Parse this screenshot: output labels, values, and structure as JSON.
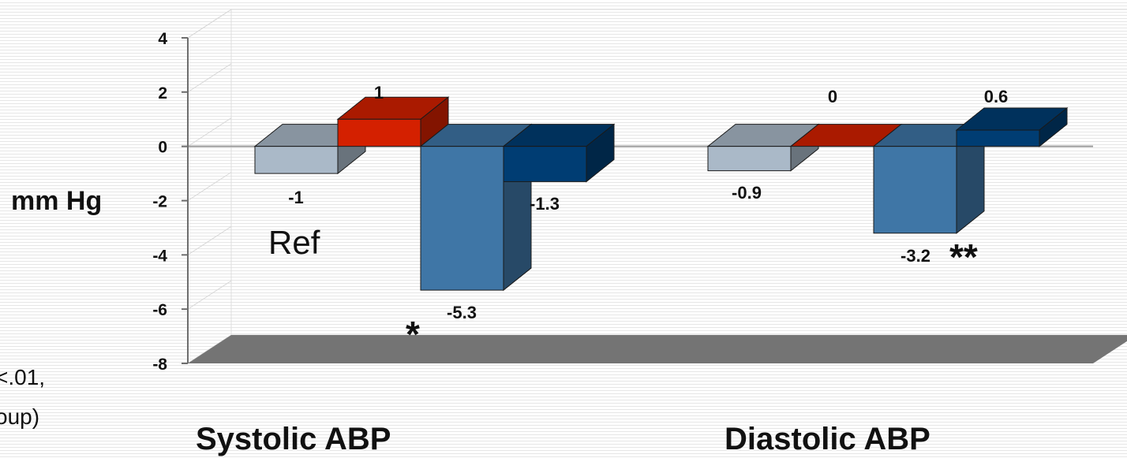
{
  "chart_data": {
    "type": "bar",
    "categories": [
      "Systolic ABP",
      "Diastolic ABP"
    ],
    "series": [
      {
        "values": [
          -1,
          -0.9
        ],
        "color": "#aab9c8"
      },
      {
        "values": [
          1,
          0
        ],
        "color": "#d42000"
      },
      {
        "values": [
          -5.3,
          -3.2
        ],
        "color": "#3f76a6"
      },
      {
        "values": [
          -1.3,
          0.6
        ],
        "color": "#003d73"
      }
    ],
    "data_labels": [
      [
        "-1",
        "-0.9"
      ],
      [
        "1",
        "0"
      ],
      [
        "-5.3",
        "-3.2"
      ],
      [
        "-1.3",
        "0.6"
      ]
    ],
    "ylabel": "mm Hg",
    "ylim": [
      -8,
      4
    ],
    "yticks": [
      "4",
      "2",
      "0",
      "-2",
      "-4",
      "-6",
      "-8"
    ],
    "grid": false,
    "annotations": {
      "ref": "Ref",
      "systolic_star": "*",
      "diastolic_star": "**",
      "note_line1": "<.01,",
      "note_line2": "oup)"
    }
  }
}
